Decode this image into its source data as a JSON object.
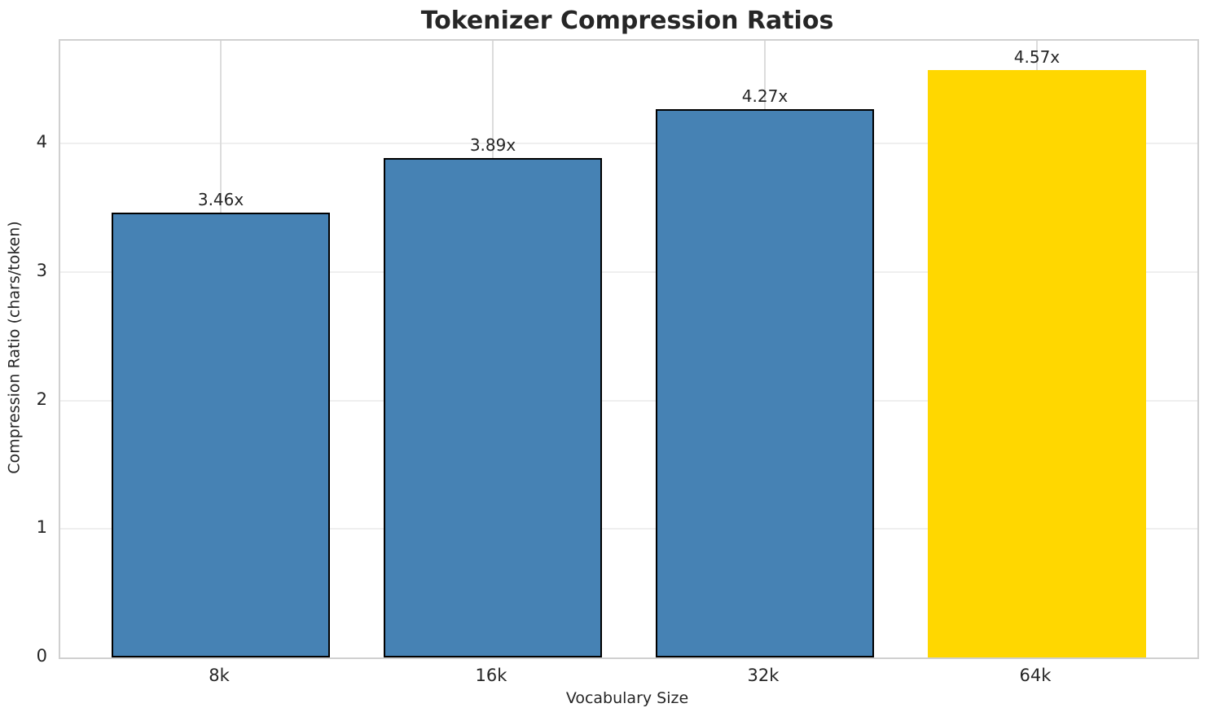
{
  "chart_data": {
    "type": "bar",
    "title": "Tokenizer Compression Ratios",
    "xlabel": "Vocabulary Size",
    "ylabel": "Compression Ratio (chars/token)",
    "categories": [
      "8k",
      "16k",
      "32k",
      "64k"
    ],
    "values": [
      3.46,
      3.89,
      4.27,
      4.57
    ],
    "bar_labels": [
      "3.46x",
      "3.89x",
      "4.27x",
      "4.57x"
    ],
    "bar_colors": [
      "#4682B4",
      "#4682B4",
      "#4682B4",
      "#FFD700"
    ],
    "bar_edge_colors": [
      "#000000",
      "#000000",
      "#000000",
      "none"
    ],
    "highlight_index": 3,
    "ylim": [
      0,
      4.8
    ],
    "yticks": [
      0,
      1,
      2,
      3,
      4
    ],
    "grid": true,
    "legend": "none",
    "colors": {
      "bar_default": "#4682B4",
      "bar_highlight": "#FFD700",
      "bar_edge": "#000000",
      "grid_vertical": "#dcdcdc",
      "grid_horizontal": "#efefef",
      "spine": "#d0d0d0",
      "text": "#262626",
      "background": "#ffffff"
    }
  }
}
